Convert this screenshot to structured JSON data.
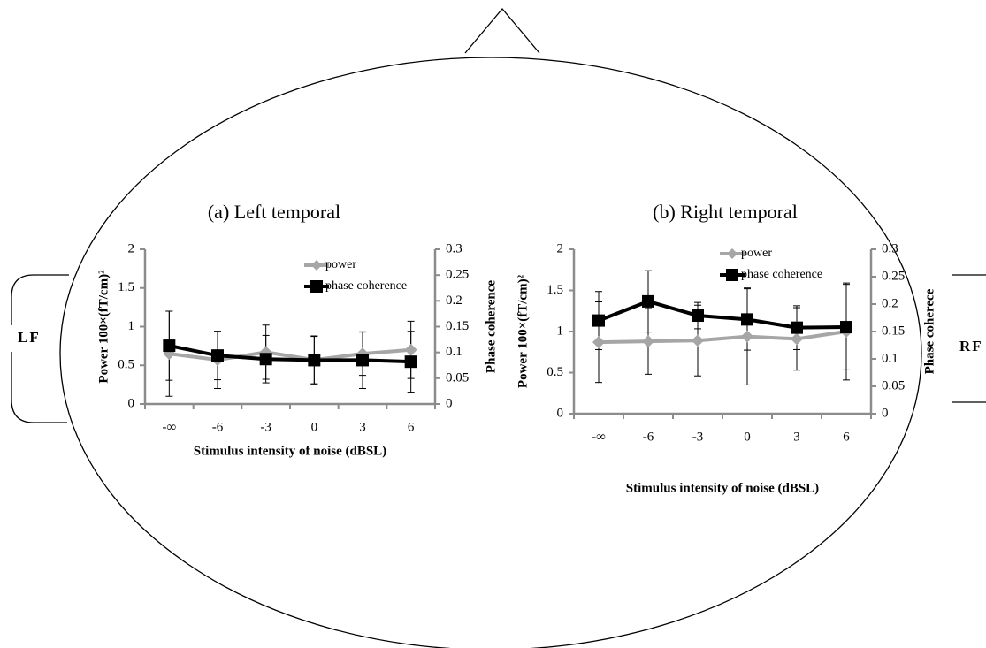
{
  "head_labels": {
    "left": "LF",
    "right": "RF"
  },
  "chart_data": [
    {
      "type": "line",
      "title": "(a) Left temporal",
      "xlabel": "Stimulus intensity of noise (dBSL)",
      "ylabel": "Power 100×(fT/cm)²",
      "y2label": "Phase coherence",
      "categories": [
        "-∞",
        "-6",
        "-3",
        "0",
        "3",
        "6"
      ],
      "ylim": [
        0,
        2
      ],
      "yticks": [
        0,
        0.5,
        1,
        1.5,
        2
      ],
      "y2lim": [
        0,
        0.3
      ],
      "y2ticks": [
        0,
        0.05,
        0.1,
        0.15,
        0.2,
        0.25,
        0.3
      ],
      "series": [
        {
          "name": "power",
          "color": "#a6a6a6",
          "marker": "diamond",
          "axis": "y",
          "values": [
            0.65,
            0.57,
            0.67,
            0.57,
            0.65,
            0.7
          ],
          "errors": [
            0.55,
            0.37,
            0.35,
            0.31,
            0.28,
            0.37
          ]
        },
        {
          "name": "phase coherence",
          "color": "#000000",
          "marker": "square",
          "axis": "y2",
          "values": [
            0.113,
            0.094,
            0.087,
            0.085,
            0.085,
            0.082
          ],
          "errors": [
            0.067,
            0.047,
            0.046,
            0.046,
            0.055,
            0.059
          ]
        }
      ]
    },
    {
      "type": "line",
      "title": "(b) Right temporal",
      "xlabel": "Stimulus intensity of noise (dBSL)",
      "ylabel": "Power 100×(fT/cm)²",
      "y2label": "Phase coherece",
      "categories": [
        "-∞",
        "-6",
        "-3",
        "0",
        "3",
        "6"
      ],
      "ylim": [
        0,
        2
      ],
      "yticks": [
        0,
        0.5,
        1,
        1.5,
        2
      ],
      "y2lim": [
        0,
        0.3
      ],
      "y2ticks": [
        0,
        0.05,
        0.1,
        0.15,
        0.2,
        0.25,
        0.3
      ],
      "series": [
        {
          "name": "power",
          "color": "#a6a6a6",
          "marker": "diamond",
          "axis": "y",
          "values": [
            0.87,
            0.88,
            0.89,
            0.94,
            0.91,
            1.0
          ],
          "errors": [
            0.49,
            0.4,
            0.43,
            0.59,
            0.38,
            0.59
          ]
        },
        {
          "name": "phase coherence",
          "color": "#000000",
          "marker": "square",
          "axis": "y2",
          "values": [
            0.17,
            0.205,
            0.179,
            0.172,
            0.157,
            0.158
          ],
          "errors": [
            0.053,
            0.056,
            0.024,
            0.056,
            0.04,
            0.078
          ]
        }
      ]
    }
  ]
}
